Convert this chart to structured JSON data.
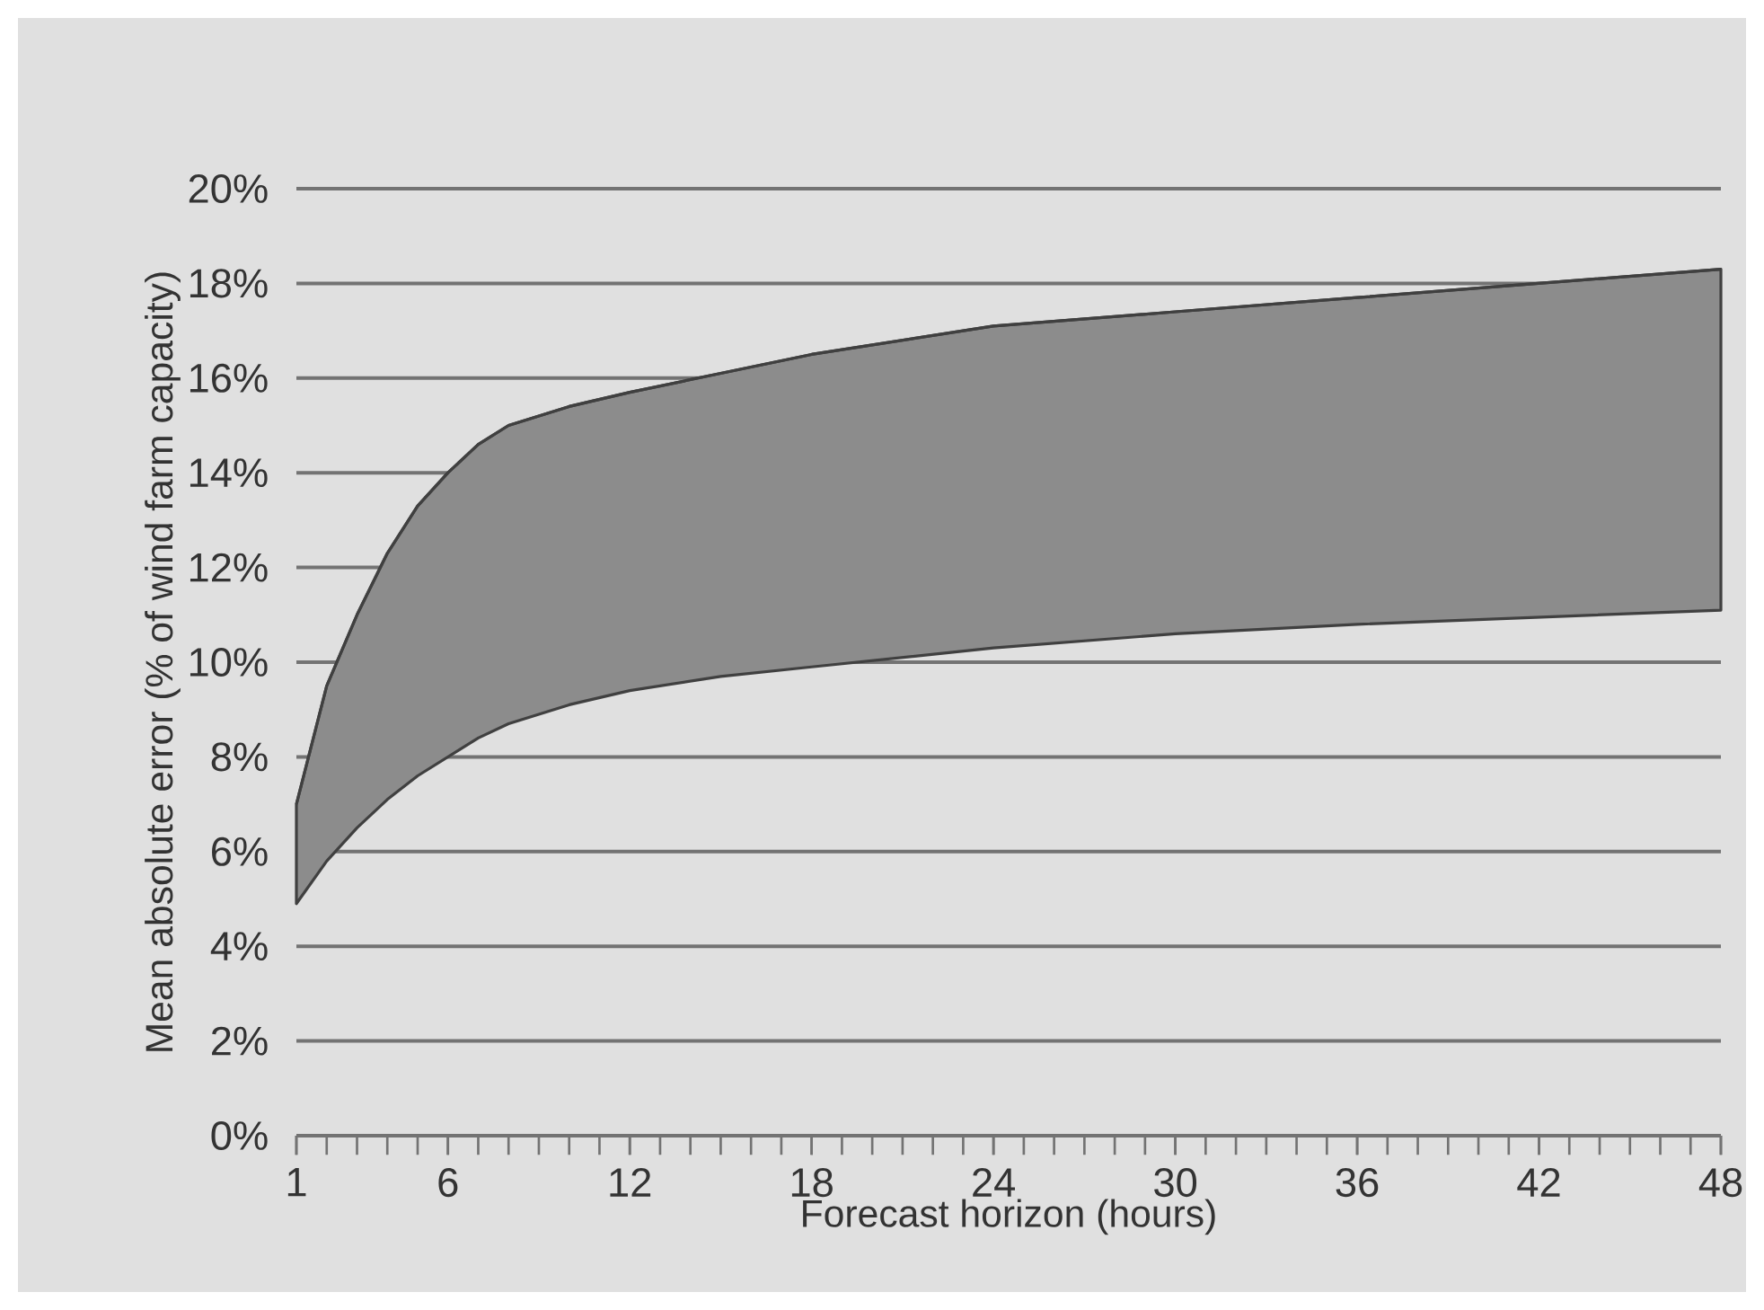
{
  "chart_data": {
    "type": "line",
    "xlabel": "Forecast horizon (hours)",
    "ylabel": "Mean absolute error (% of wind farm capacity)",
    "x": [
      1,
      2,
      3,
      4,
      5,
      6,
      7,
      8,
      10,
      12,
      15,
      18,
      21,
      24,
      30,
      36,
      42,
      48
    ],
    "series": [
      {
        "type": "line",
        "color": "#404040",
        "values": [
          7.0,
          9.5,
          11.0,
          12.3,
          13.3,
          14.0,
          14.6,
          15.0,
          15.4,
          15.7,
          16.1,
          16.5,
          16.8,
          17.1,
          17.4,
          17.7,
          18.0,
          18.3
        ],
        "upper": [
          7.0,
          9.5,
          11.0,
          12.3,
          13.3,
          14.0,
          14.6,
          15.0,
          15.4,
          15.7,
          16.1,
          16.5,
          16.8,
          17.1,
          17.4,
          17.7,
          18.0,
          18.3
        ],
        "lower": [
          4.9,
          5.8,
          6.5,
          7.1,
          7.6,
          8.0,
          8.4,
          8.7,
          9.1,
          9.4,
          9.7,
          9.9,
          10.1,
          10.3,
          10.6,
          10.8,
          10.95,
          11.1
        ]
      }
    ],
    "xlim": [
      1,
      48
    ],
    "ylim": [
      0,
      20
    ],
    "xticks": [
      1,
      6,
      12,
      18,
      24,
      30,
      36,
      42,
      48
    ],
    "yticks": [
      {
        "value": 0,
        "label": "0%"
      },
      {
        "value": 2,
        "label": "2%"
      },
      {
        "value": 4,
        "label": "4%"
      },
      {
        "value": 6,
        "label": "6%"
      },
      {
        "value": 8,
        "label": "8%"
      },
      {
        "value": 10,
        "label": "10%"
      },
      {
        "value": 12,
        "label": "12%"
      },
      {
        "value": 14,
        "label": "14%"
      },
      {
        "value": 16,
        "label": "16%"
      },
      {
        "value": 18,
        "label": "18%"
      },
      {
        "value": 20,
        "label": "20%"
      }
    ],
    "grid": "y",
    "legend": false
  }
}
